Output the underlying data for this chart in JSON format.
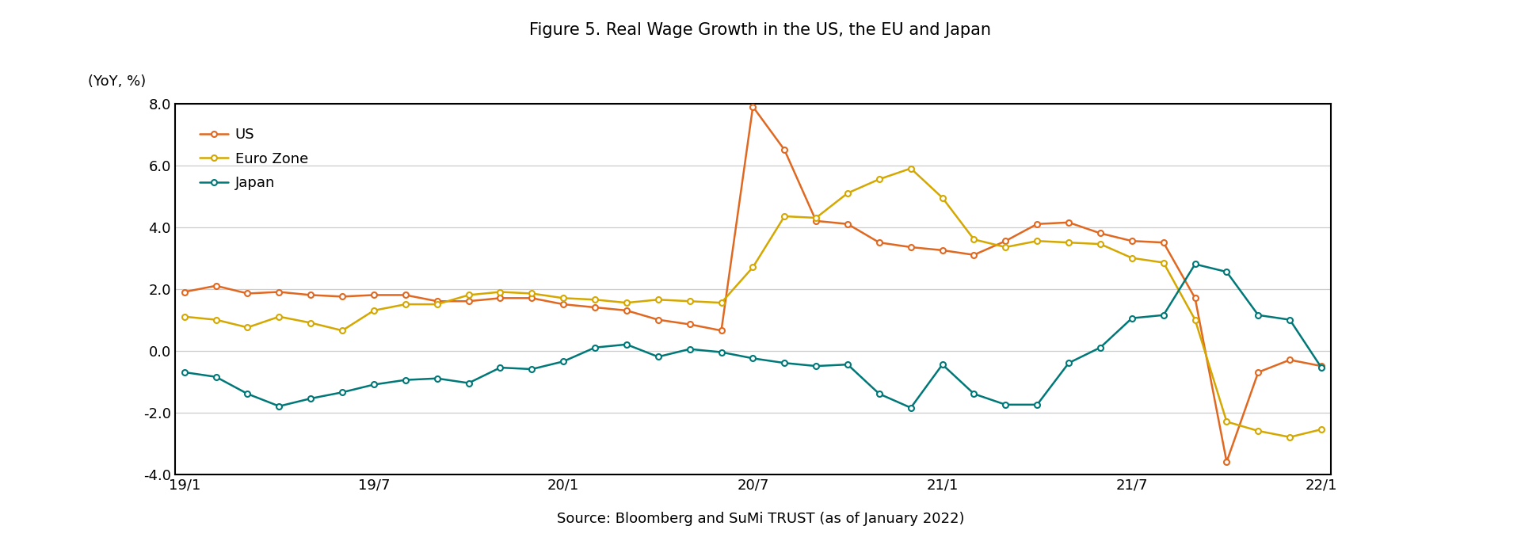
{
  "title": "Figure 5. Real Wage Growth in the US, the EU and Japan",
  "ylabel": "(YoY, %)",
  "source": "Source: Bloomberg and SuMi TRUST (as of January 2022)",
  "ylim": [
    -4.0,
    8.0
  ],
  "yticks": [
    -4.0,
    -2.0,
    0.0,
    2.0,
    4.0,
    6.0,
    8.0
  ],
  "xtick_labels": [
    "19/1",
    "19/7",
    "20/1",
    "20/7",
    "21/1",
    "21/7",
    "22/1"
  ],
  "us_color": "#E06820",
  "eu_color": "#D4A800",
  "jp_color": "#007878",
  "marker_face": "#FFFFFF",
  "marker_size": 5,
  "marker_edge_width": 1.5,
  "line_width": 1.8,
  "us_data": {
    "x": [
      0,
      1,
      2,
      3,
      4,
      5,
      6,
      7,
      8,
      9,
      10,
      11,
      12,
      13,
      14,
      15,
      16,
      17,
      18,
      19,
      20,
      21,
      22,
      23,
      24,
      25,
      26,
      27,
      28,
      29,
      30,
      31,
      32,
      33,
      34,
      35,
      36
    ],
    "y": [
      1.9,
      2.1,
      1.85,
      1.9,
      1.8,
      1.75,
      1.8,
      1.8,
      1.6,
      1.6,
      1.7,
      1.7,
      1.5,
      1.4,
      1.3,
      1.0,
      0.85,
      0.65,
      7.9,
      6.5,
      4.2,
      4.1,
      3.5,
      3.35,
      3.25,
      3.1,
      3.55,
      4.1,
      4.15,
      3.8,
      3.55,
      3.5,
      1.7,
      -3.6,
      -0.7,
      -0.3,
      -0.5
    ]
  },
  "eu_data": {
    "x": [
      0,
      1,
      2,
      3,
      4,
      5,
      6,
      7,
      8,
      9,
      10,
      11,
      12,
      13,
      14,
      15,
      16,
      17,
      18,
      19,
      20,
      21,
      22,
      23,
      24,
      25,
      26,
      27,
      28,
      29,
      30,
      31,
      32,
      33,
      34,
      35,
      36
    ],
    "y": [
      1.1,
      1.0,
      0.75,
      1.1,
      0.9,
      0.65,
      1.3,
      1.5,
      1.5,
      1.8,
      1.9,
      1.85,
      1.7,
      1.65,
      1.55,
      1.65,
      1.6,
      1.55,
      2.7,
      4.35,
      4.3,
      5.1,
      5.55,
      5.9,
      4.95,
      3.6,
      3.35,
      3.55,
      3.5,
      3.45,
      3.0,
      2.85,
      1.0,
      -2.3,
      -2.6,
      -2.8,
      -2.55
    ]
  },
  "jp_data": {
    "x": [
      0,
      1,
      2,
      3,
      4,
      5,
      6,
      7,
      8,
      9,
      10,
      11,
      12,
      13,
      14,
      15,
      16,
      17,
      18,
      19,
      20,
      21,
      22,
      23,
      24,
      25,
      26,
      27,
      28,
      29,
      30,
      31,
      32,
      33,
      34,
      35,
      36
    ],
    "y": [
      -0.7,
      -0.85,
      -1.4,
      -1.8,
      -1.55,
      -1.35,
      -1.1,
      -0.95,
      -0.9,
      -1.05,
      -0.55,
      -0.6,
      -0.35,
      0.1,
      0.2,
      -0.2,
      0.05,
      -0.05,
      -0.25,
      -0.4,
      -0.5,
      -0.45,
      -1.4,
      -1.85,
      -0.45,
      -1.4,
      -1.75,
      -1.75,
      -0.4,
      0.1,
      1.05,
      1.15,
      2.8,
      2.55,
      1.15,
      1.0,
      -0.55
    ]
  },
  "x_tick_positions": [
    0,
    6,
    12,
    18,
    24,
    30,
    36
  ],
  "background_color": "#FFFFFF",
  "grid_color": "#CCCCCC",
  "plot_bg_color": "#FFFFFF"
}
